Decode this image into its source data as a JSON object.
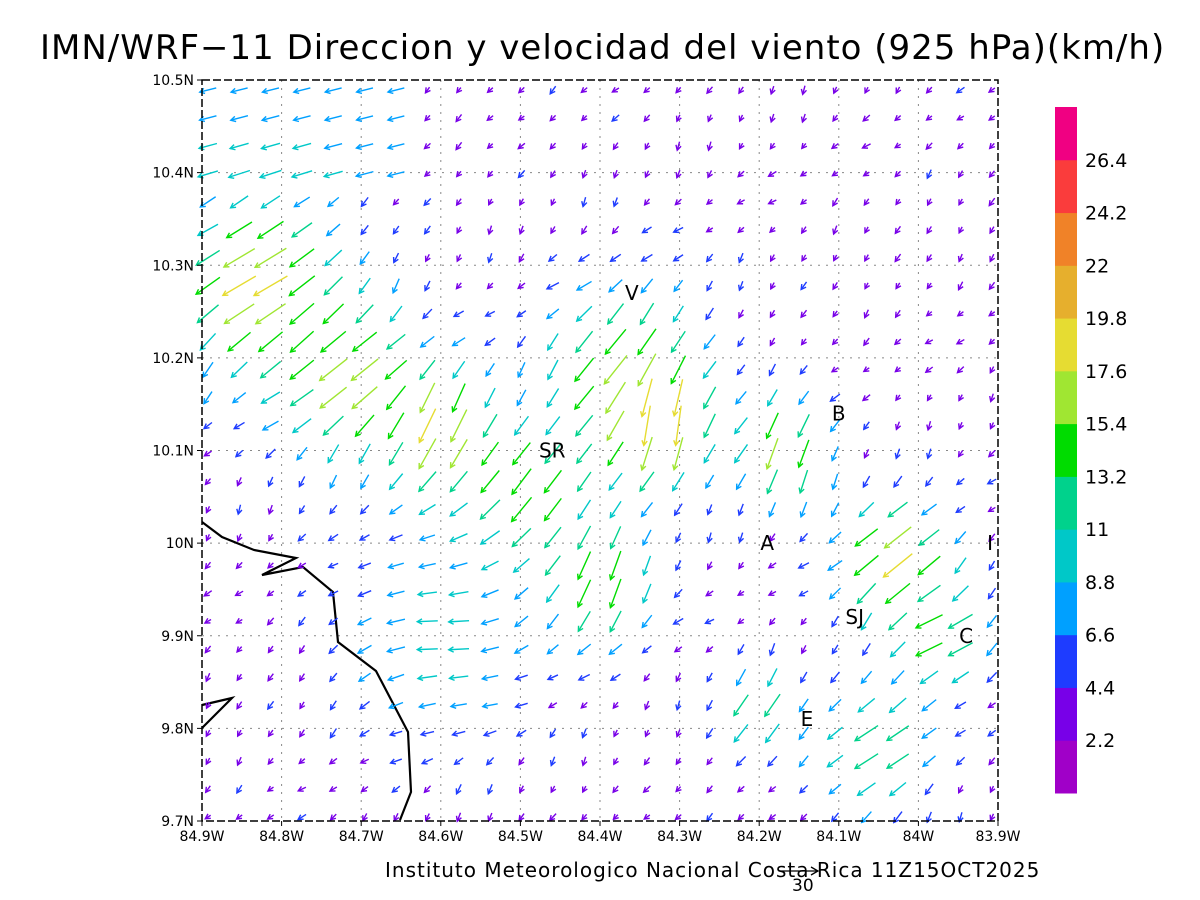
{
  "title": "IMN/WRF−11 Direccion y velocidad del viento (925 hPa)(km/h)",
  "footer": "Instituto Meteorologico Nacional Costa Rica 11Z15OCT2025",
  "reference_vector_label": "30",
  "chart_data": {
    "type": "vector-field",
    "x_ticks": [
      "84.9W",
      "84.8W",
      "84.7W",
      "84.6W",
      "84.5W",
      "84.4W",
      "84.3W",
      "84.2W",
      "84.1W",
      "84W",
      "83.9W"
    ],
    "y_ticks": [
      "9.7N",
      "9.8N",
      "9.9N",
      "10N",
      "10.1N",
      "10.2N",
      "10.3N",
      "10.4N",
      "10.5N"
    ],
    "x_range": [
      -84.9,
      -83.9
    ],
    "y_range": [
      9.7,
      10.5
    ],
    "grid": "dotted",
    "reference_vector_kmh": 30,
    "place_labels": [
      {
        "text": "V",
        "lon": -84.36,
        "lat": 10.27
      },
      {
        "text": "B",
        "lon": -84.1,
        "lat": 10.14
      },
      {
        "text": "SR",
        "lon": -84.46,
        "lat": 10.1
      },
      {
        "text": "A",
        "lon": -84.19,
        "lat": 10.0
      },
      {
        "text": "I",
        "lon": -83.91,
        "lat": 10.0
      },
      {
        "text": "SJ",
        "lon": -84.08,
        "lat": 9.92
      },
      {
        "text": "C",
        "lon": -83.94,
        "lat": 9.9
      },
      {
        "text": "E",
        "lon": -84.14,
        "lat": 9.81
      }
    ],
    "colorbar": {
      "labels": [
        "2.2",
        "4.4",
        "6.6",
        "8.8",
        "11",
        "13.2",
        "15.4",
        "17.6",
        "19.8",
        "22",
        "24.2",
        "26.4"
      ],
      "colors": [
        "#a000c8",
        "#7800e8",
        "#1e3cff",
        "#00a0ff",
        "#00c8c8",
        "#00d28c",
        "#00dc00",
        "#a0e632",
        "#e6dc32",
        "#e6af2d",
        "#f08228",
        "#fa3c3c",
        "#f00082"
      ]
    }
  }
}
